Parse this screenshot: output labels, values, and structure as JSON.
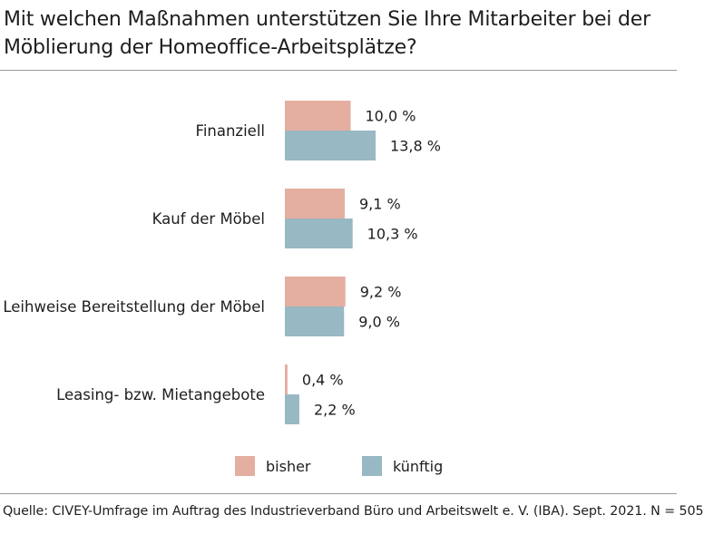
{
  "title": "Mit welchen Maßnahmen unterstützen Sie Ihre Mitarbeiter bei der Möblierung der Homeoffice-Arbeitsplätze?",
  "source": "Quelle: CIVEY-Umfrage im Auftrag des Industrieverband Büro und Arbeitswelt e. V. (IBA). Sept. 2021. N = 505",
  "colors": {
    "bisher": "#e4aea1",
    "kuenftig": "#98b8c3",
    "text": "#1e1e1e",
    "rule": "#9a9a9a"
  },
  "legend": [
    {
      "label": "bisher",
      "color": "#e4aea1"
    },
    {
      "label": "künftig",
      "color": "#98b8c3"
    }
  ],
  "chart_data": {
    "type": "bar",
    "orientation": "horizontal",
    "title": "Mit welchen Maßnahmen unterstützen Sie Ihre Mitarbeiter bei der Möblierung der Homeoffice-Arbeitsplätze?",
    "categories": [
      "Finanziell",
      "Kauf der Möbel",
      "Leihweise Bereitstellung der Möbel",
      "Leasing- bzw. Mietangebote"
    ],
    "series": [
      {
        "name": "bisher",
        "values": [
          10.0,
          9.1,
          9.2,
          0.4
        ],
        "labels": [
          "10,0 %",
          "9,1 %",
          "9,2 %",
          "0,4 %"
        ]
      },
      {
        "name": "künftig",
        "values": [
          13.8,
          10.3,
          9.0,
          2.2
        ],
        "labels": [
          "13,8 %",
          "10,3 %",
          "9,0 %",
          "2,2 %"
        ]
      }
    ],
    "unit": "%",
    "xlim": [
      0,
      14
    ],
    "grid": false,
    "legend_position": "bottom"
  }
}
